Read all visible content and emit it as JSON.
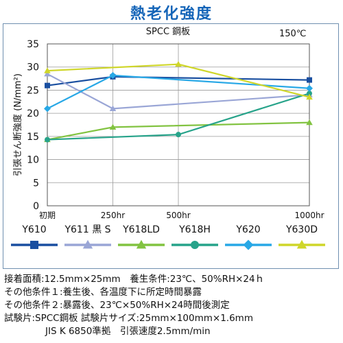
{
  "title": "熱老化強度",
  "chart_data": {
    "type": "line",
    "title": "SPCC 鋼板",
    "annotation": "150℃",
    "ylabel": "引張せん断強度 (N/mm²)",
    "xlabel": "",
    "categories": [
      "初期",
      "250hr",
      "500hr",
      "1000hr"
    ],
    "x": [
      0,
      250,
      500,
      1000
    ],
    "ylim": [
      0,
      35
    ],
    "yticks": [
      0,
      5,
      10,
      15,
      20,
      25,
      30,
      35
    ],
    "grid": true,
    "legend_position": "below",
    "series": [
      {
        "name": "Y610",
        "color": "#1a4fa0",
        "marker": "square",
        "points": [
          [
            0,
            26.0
          ],
          [
            250,
            27.9
          ],
          [
            1000,
            27.2
          ]
        ]
      },
      {
        "name": "Y611 黒 S",
        "color": "#9aa6d6",
        "marker": "triangle",
        "points": [
          [
            0,
            28.5
          ],
          [
            250,
            21.0
          ],
          [
            1000,
            24.0
          ]
        ]
      },
      {
        "name": "Y618LD",
        "color": "#82c341",
        "marker": "triangle",
        "points": [
          [
            0,
            14.3
          ],
          [
            250,
            17.0
          ],
          [
            1000,
            18.0
          ]
        ]
      },
      {
        "name": "Y618H",
        "color": "#27a38a",
        "marker": "circle",
        "points": [
          [
            0,
            14.3
          ],
          [
            500,
            15.4
          ],
          [
            1000,
            24.3
          ]
        ]
      },
      {
        "name": "Y620",
        "color": "#28a8e6",
        "marker": "diamond",
        "points": [
          [
            0,
            21.0
          ],
          [
            250,
            28.2
          ],
          [
            1000,
            25.4
          ]
        ]
      },
      {
        "name": "Y630D",
        "color": "#cfd62a",
        "marker": "triangle",
        "points": [
          [
            0,
            29.2
          ],
          [
            500,
            30.6
          ],
          [
            1000,
            23.5
          ]
        ]
      }
    ]
  },
  "notes": [
    "接着面積:12.5mm×25mm　養生条件:23℃、50%RH×24ｈ",
    "その他条件１:養生後、各温度下に所定時間暴露",
    "その他条件２:暴露後、23℃×50%RH×24時間後測定",
    "試験片:SPCC鋼板 試験片サイズ:25mm×100mm×1.6mm",
    "JIS K 6850準拠　引張速度2.5mm/min"
  ]
}
